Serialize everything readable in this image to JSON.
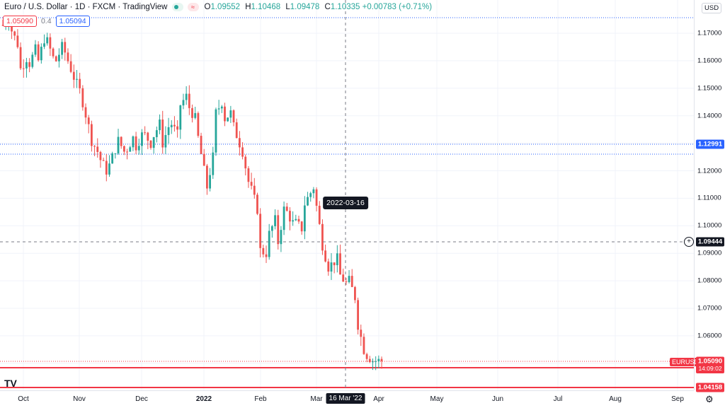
{
  "legend": {
    "symbol": "Euro / U.S. Dollar · 1D · FXCM · TradingView",
    "o_key": "O",
    "o_val": "1.09552",
    "h_key": "H",
    "h_val": "1.10468",
    "l_key": "L",
    "l_val": "1.09478",
    "c_key": "C",
    "c_val": "1.10335",
    "change": "+0.00783 (+0.71%)",
    "wave_glyph": "≈"
  },
  "bidask": {
    "bid": "1.05090",
    "spread": "0.4",
    "ask": "1.05094"
  },
  "currency_select": "USD",
  "price_ticks": [
    "1.17000",
    "1.16000",
    "1.15000",
    "1.14000",
    "1.13000",
    "1.12000",
    "1.11000",
    "1.10000",
    "1.09000",
    "1.08000",
    "1.07000",
    "1.06000",
    "1.05000"
  ],
  "price_tags": {
    "level_1": "1.12991",
    "crosshair": "1.09444",
    "last": "1.05090",
    "countdown": "14:09:02",
    "level_2": "1.04158"
  },
  "symbol_label": "EURUSD",
  "time_labels": [
    "Oct",
    "Nov",
    "Dec",
    "2022",
    "Feb",
    "Mar",
    "Apr",
    "May",
    "Jun",
    "Jul",
    "Aug",
    "Sep"
  ],
  "crosshair_time": "16 Mar '22",
  "date_tooltip": "2022-03-16",
  "logo_text": "TV",
  "gear_glyph": "⚙",
  "crosshair_glyph": "+",
  "colors": {
    "up": "#26a69a",
    "down": "#ef5350",
    "grid": "#f0f3fa",
    "level_blue": "#2962ff",
    "level_red": "#f23645"
  },
  "chart_data": {
    "type": "candlestick",
    "ylim": [
      1.0415,
      1.1775
    ],
    "anchors": [
      [
        1.173,
        1.175
      ],
      [
        1.171,
        1.166
      ],
      [
        1.157,
        1.161
      ],
      [
        1.159,
        1.164
      ],
      [
        1.16,
        1.168
      ],
      [
        1.167,
        1.161
      ],
      [
        1.16,
        1.165
      ],
      [
        1.163,
        1.157
      ],
      [
        1.154,
        1.149
      ],
      [
        1.145,
        1.136
      ],
      [
        1.131,
        1.127
      ],
      [
        1.124,
        1.12
      ],
      [
        1.122,
        1.128
      ],
      [
        1.131,
        1.127
      ],
      [
        1.128,
        1.132
      ],
      [
        1.129,
        1.133
      ],
      [
        1.133,
        1.13
      ],
      [
        1.133,
        1.137
      ],
      [
        1.13,
        1.136
      ],
      [
        1.137,
        1.133
      ],
      [
        1.144,
        1.147
      ],
      [
        1.143,
        1.139
      ],
      [
        1.132,
        1.12
      ],
      [
        1.114,
        1.125
      ],
      [
        1.141,
        1.145
      ],
      [
        1.139,
        1.141
      ],
      [
        1.136,
        1.13
      ],
      [
        1.127,
        1.116
      ],
      [
        1.113,
        1.106
      ],
      [
        1.091,
        1.09
      ],
      [
        1.097,
        1.102
      ],
      [
        1.094,
        1.106
      ],
      [
        1.105,
        1.101
      ],
      [
        1.101,
        1.099
      ],
      [
        1.108,
        1.112
      ],
      [
        1.114,
        1.1
      ],
      [
        1.093,
        1.085
      ],
      [
        1.086,
        1.088
      ],
      [
        1.082,
        1.079
      ],
      [
        1.08,
        1.074
      ],
      [
        1.064,
        1.055
      ],
      [
        1.053,
        1.051
      ],
      [
        1.0509,
        1.0509
      ]
    ]
  }
}
